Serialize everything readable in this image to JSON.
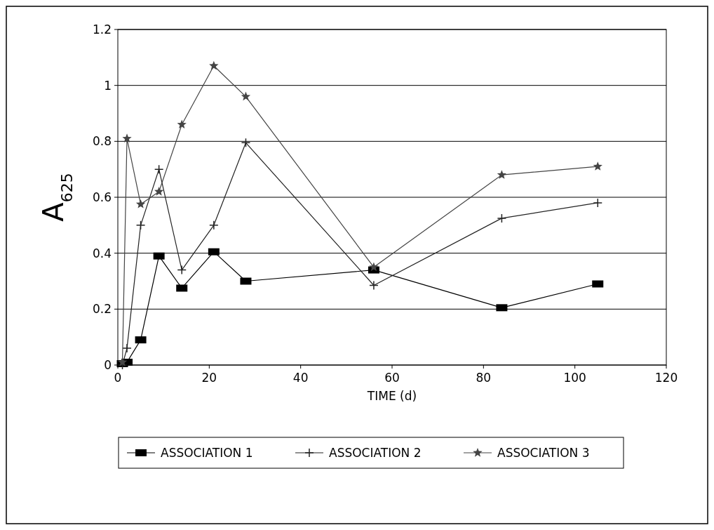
{
  "chart_data": {
    "type": "line",
    "xlabel": "TIME (d)",
    "ylabel": "A$_{625}$",
    "x": [
      1,
      2,
      5,
      9,
      14,
      21,
      28,
      56,
      84,
      105
    ],
    "series": [
      {
        "name": "ASSOCIATION 1",
        "color": "#000000",
        "marker": "square",
        "values": [
          0.005,
          0.01,
          0.09,
          0.39,
          0.275,
          0.405,
          0.3,
          0.34,
          0.205,
          0.29
        ]
      },
      {
        "name": "ASSOCIATION 2",
        "color": "#222222",
        "marker": "cross",
        "values": [
          0,
          0.06,
          0.5,
          0.7,
          0.34,
          0.5,
          0.795,
          0.285,
          0.525,
          0.58
        ]
      },
      {
        "name": "ASSOCIATION 3",
        "color": "#444444",
        "marker": "star",
        "values": [
          0.01,
          0.81,
          0.575,
          0.62,
          0.86,
          1.07,
          0.96,
          0.35,
          0.68,
          0.71
        ]
      }
    ],
    "xlim": [
      0,
      120
    ],
    "xticks": [
      0,
      20,
      40,
      60,
      80,
      100,
      120
    ],
    "ylim": [
      0,
      1.2
    ],
    "yticks": [
      0,
      0.2,
      0.4,
      0.6,
      0.8,
      1,
      1.2
    ],
    "grid": "y",
    "legend": "bottom"
  }
}
